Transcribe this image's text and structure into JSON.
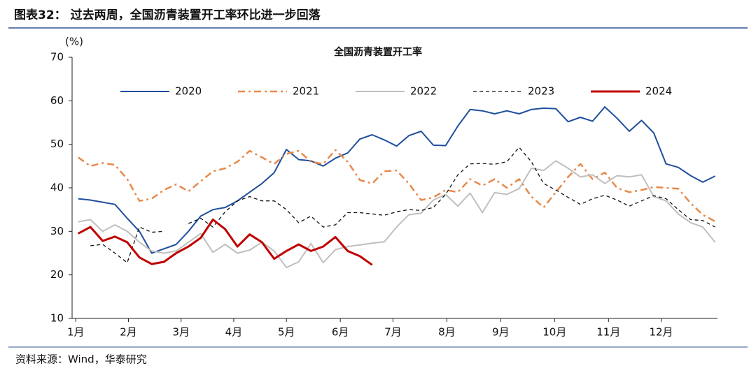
{
  "header": {
    "title": "图表32：  过去两周，全国沥青装置开工率环比进一步回落"
  },
  "chart_data": {
    "type": "line",
    "title": "全国沥青装置开工率",
    "ylabel": "(%)",
    "x": [
      1,
      2,
      3,
      4,
      5,
      6,
      7,
      8,
      9,
      10,
      11,
      12,
      13,
      14,
      15,
      16,
      17,
      18,
      19,
      20,
      21,
      22,
      23,
      24,
      25,
      26,
      27,
      28,
      29,
      30,
      31,
      32,
      33,
      34,
      35,
      36,
      37,
      38,
      39,
      40,
      41,
      42,
      43,
      44,
      45,
      46,
      47,
      48,
      49,
      50,
      51,
      52,
      53
    ],
    "xlim": [
      0.5,
      53.2
    ],
    "xticks": [
      {
        "value": 0.8,
        "label": "1月"
      },
      {
        "value": 5.1,
        "label": "2月"
      },
      {
        "value": 9.4,
        "label": "3月"
      },
      {
        "value": 13.7,
        "label": "4月"
      },
      {
        "value": 18,
        "label": "5月"
      },
      {
        "value": 22.4,
        "label": "6月"
      },
      {
        "value": 26.7,
        "label": "7月"
      },
      {
        "value": 31.1,
        "label": "8月"
      },
      {
        "value": 35.5,
        "label": "9月"
      },
      {
        "value": 39.9,
        "label": "10月"
      },
      {
        "value": 44.3,
        "label": "11月"
      },
      {
        "value": 48.6,
        "label": "12月"
      }
    ],
    "ylim": [
      10,
      70
    ],
    "yticks": [
      10,
      20,
      30,
      40,
      50,
      60,
      70
    ],
    "grid": false,
    "legend": "top",
    "series": [
      {
        "name": "2020",
        "color": "#1f4e9e",
        "style": "solid",
        "values": [
          37.5,
          37.2,
          36.7,
          36.2,
          33,
          30,
          25,
          26,
          27,
          30,
          33.5,
          35,
          35.5,
          37,
          39,
          41,
          43.5,
          48.8,
          46.5,
          46.2,
          45,
          46.8,
          48,
          51.2,
          52.2,
          51,
          49.6,
          52,
          53,
          49.8,
          49.7,
          54.2,
          58,
          57.7,
          57,
          57.7,
          57,
          58,
          58.3,
          58.2,
          55.2,
          56.2,
          55.3,
          58.6,
          56,
          53,
          55.5,
          52.6,
          45.5,
          44.7,
          42.8,
          41.3,
          42.7
        ]
      },
      {
        "name": "2021",
        "color": "#e8894a",
        "style": "dashdot",
        "values": [
          47,
          45,
          45.7,
          45.3,
          42,
          37,
          37.5,
          39.5,
          40.8,
          39.2,
          41.5,
          43.8,
          44.5,
          46,
          48.5,
          47,
          45.5,
          47.8,
          48.5,
          46,
          45.5,
          48.7,
          46,
          41.8,
          41,
          43.8,
          44,
          41,
          37.2,
          37.8,
          39.5,
          39,
          42,
          40.5,
          42,
          40,
          42,
          38,
          35.5,
          39,
          42.5,
          45.5,
          42,
          43.5,
          40,
          39,
          39.5,
          40.2,
          40,
          39.8,
          36.5,
          33.8,
          32.3
        ]
      },
      {
        "name": "2022",
        "color": "#bfbfbf",
        "style": "solid",
        "values": [
          32.2,
          32.7,
          30,
          31.5,
          30,
          27.5,
          25.5,
          25,
          25.5,
          27.5,
          29.5,
          25.2,
          27,
          25,
          25.7,
          27.5,
          25.5,
          21.7,
          23,
          27.2,
          22.8,
          25.8,
          26.5,
          26.9,
          27.3,
          27.6,
          31,
          33.8,
          34.2,
          37.2,
          38.5,
          35.8,
          38.8,
          34.3,
          38.9,
          38.5,
          39.8,
          44.5,
          44,
          46.2,
          44.5,
          42.5,
          43,
          41,
          42.8,
          42.5,
          43,
          38,
          37,
          34,
          32,
          31,
          27.5
        ]
      },
      {
        "name": "2023",
        "color": "#111111",
        "style": "dashed",
        "values": [
          null,
          26.7,
          27,
          25,
          22.8,
          31,
          29.8,
          30,
          null,
          31.8,
          33,
          31,
          34.5,
          37,
          38,
          37,
          37,
          35,
          32,
          33.5,
          31,
          31.5,
          34.3,
          34.3,
          34,
          33.7,
          34.5,
          35,
          34.8,
          35.5,
          38.5,
          43,
          45.5,
          45.6,
          45.4,
          46,
          49.3,
          46,
          41,
          39.5,
          37.8,
          36.2,
          37.5,
          38.3,
          37.2,
          35.8,
          37,
          38.2,
          37.5,
          35,
          32.7,
          32.5,
          31
        ]
      },
      {
        "name": "2024",
        "color": "#c00000",
        "style": "bold",
        "values": [
          29.5,
          31,
          27.8,
          28.8,
          27.5,
          24,
          22.5,
          23,
          25,
          26.5,
          28.5,
          32.7,
          30.5,
          26.5,
          29.3,
          27.5,
          23.7,
          25.5,
          27,
          25.5,
          26.5,
          28.7,
          25.5,
          24.3,
          22.3,
          null,
          null,
          null,
          null,
          null,
          null,
          null,
          null,
          null,
          null,
          null,
          null,
          null,
          null,
          null,
          null,
          null,
          null,
          null,
          null,
          null,
          null,
          null,
          null,
          null,
          null,
          null,
          null
        ]
      }
    ]
  },
  "footer": {
    "source": "资料来源：Wind，华泰研究"
  }
}
